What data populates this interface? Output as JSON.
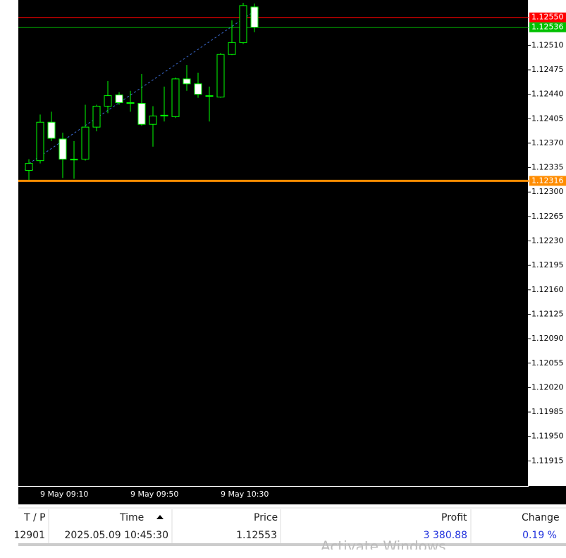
{
  "chart_data": {
    "type": "candlestick",
    "categories": [
      null,
      "9 May 09:10",
      null,
      null,
      null,
      null,
      null,
      null,
      null,
      "9 May 09:50",
      null,
      null,
      null,
      null,
      null,
      null,
      null,
      "9 May 10:30",
      null,
      null,
      null
    ],
    "series": [
      {
        "name": "open",
        "values": [
          1.12331,
          1.12345,
          1.124,
          1.12376,
          1.12347,
          1.12347,
          1.12393,
          1.12423,
          1.12439,
          1.12428,
          1.12427,
          1.12397,
          1.1241,
          1.12408,
          1.12462,
          1.12455,
          1.12438,
          1.12436,
          1.12497,
          1.12514,
          1.12565
        ]
      },
      {
        "name": "high",
        "values": [
          1.12347,
          1.12411,
          1.12415,
          1.12385,
          1.12373,
          1.12425,
          1.12425,
          1.12459,
          1.12443,
          1.12445,
          1.12469,
          1.12423,
          1.12451,
          1.12464,
          1.12482,
          1.12471,
          1.12451,
          1.12499,
          1.12546,
          1.12571,
          1.1257
        ]
      },
      {
        "name": "low",
        "values": [
          1.12317,
          1.12341,
          1.12373,
          1.1232,
          1.12319,
          1.12345,
          1.12387,
          1.12413,
          1.12425,
          1.12415,
          1.12395,
          1.12365,
          1.12401,
          1.12406,
          1.12445,
          1.12435,
          1.12401,
          1.12435,
          1.12496,
          1.12512,
          1.12529
        ]
      },
      {
        "name": "close",
        "values": [
          1.12341,
          1.124,
          1.12377,
          1.12347,
          1.12347,
          1.12393,
          1.12423,
          1.12438,
          1.12428,
          1.12428,
          1.12397,
          1.12409,
          1.1241,
          1.12462,
          1.12455,
          1.1244,
          1.12438,
          1.12497,
          1.12514,
          1.12567,
          1.12536
        ]
      }
    ],
    "candle_color": "#00ff00",
    "ylim": [
      1.11879,
      1.12575
    ],
    "yticks": [
      {
        "value": 1.1251,
        "label": "1.12510"
      },
      {
        "value": 1.12475,
        "label": "1.12475"
      },
      {
        "value": 1.1244,
        "label": "1.12440"
      },
      {
        "value": 1.12405,
        "label": "1.12405"
      },
      {
        "value": 1.1237,
        "label": "1.12370"
      },
      {
        "value": 1.12335,
        "label": "1.12335"
      },
      {
        "value": 1.123,
        "label": "1.12300"
      },
      {
        "value": 1.12265,
        "label": "1.12265"
      },
      {
        "value": 1.1223,
        "label": "1.12230"
      },
      {
        "value": 1.12195,
        "label": "1.12195"
      },
      {
        "value": 1.1216,
        "label": "1.12160"
      },
      {
        "value": 1.12125,
        "label": "1.12125"
      },
      {
        "value": 1.1209,
        "label": "1.12090"
      },
      {
        "value": 1.12055,
        "label": "1.12055"
      },
      {
        "value": 1.1202,
        "label": "1.12020"
      },
      {
        "value": 1.11985,
        "label": "1.11985"
      },
      {
        "value": 1.1195,
        "label": "1.11950"
      },
      {
        "value": 1.11915,
        "label": "1.11915"
      }
    ],
    "price_lines": [
      {
        "value": 1.1255,
        "label": "1.12550",
        "color": "#ff0000",
        "width": 1
      },
      {
        "value": 1.12536,
        "label": "1.12536",
        "color": "#00c000",
        "width": 1
      },
      {
        "value": 1.12316,
        "label": "1.12316",
        "color": "#ff8c00",
        "width": 3
      }
    ]
  },
  "table": {
    "headers": [
      "T / P",
      "Time",
      "Price",
      "Profit",
      "Change"
    ],
    "rows": [
      [
        "12901",
        "2025.05.09 10:45:30",
        "1.12553",
        "3 380.88",
        "0.19 %"
      ]
    ]
  },
  "watermark": "Activate Windows"
}
